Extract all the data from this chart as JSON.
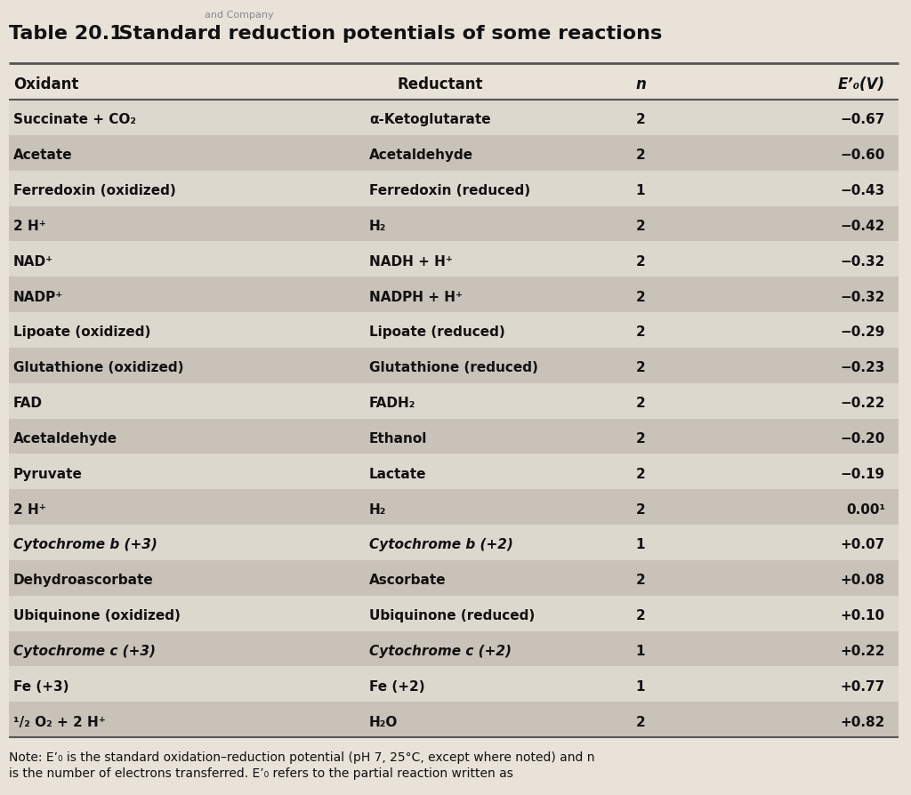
{
  "title_part1": "Table 20.1",
  "title_part2": "  Standard reduction potentials of some reactions",
  "company_text": "and Company",
  "headers": [
    "Oxidant",
    "Reductant",
    "n",
    "E’₀(V)"
  ],
  "rows": [
    [
      "Succinate + CO₂",
      "α-Ketoglutarate",
      "2",
      "−0.67"
    ],
    [
      "Acetate",
      "Acetaldehyde",
      "2",
      "−0.60"
    ],
    [
      "Ferredoxin (oxidized)",
      "Ferredoxin (reduced)",
      "1",
      "−0.43"
    ],
    [
      "2 H⁺",
      "H₂",
      "2",
      "−0.42"
    ],
    [
      "NAD⁺",
      "NADH + H⁺",
      "2",
      "−0.32"
    ],
    [
      "NADP⁺",
      "NADPH + H⁺",
      "2",
      "−0.32"
    ],
    [
      "Lipoate (oxidized)",
      "Lipoate (reduced)",
      "2",
      "−0.29"
    ],
    [
      "Glutathione (oxidized)",
      "Glutathione (reduced)",
      "2",
      "−0.23"
    ],
    [
      "FAD",
      "FADH₂",
      "2",
      "−0.22"
    ],
    [
      "Acetaldehyde",
      "Ethanol",
      "2",
      "−0.20"
    ],
    [
      "Pyruvate",
      "Lactate",
      "2",
      "−0.19"
    ],
    [
      "2 H⁺",
      "H₂",
      "2",
      "0.00¹"
    ],
    [
      "Cytochrome b (+3)",
      "Cytochrome b (+2)",
      "1",
      "+0.07"
    ],
    [
      "Dehydroascorbate",
      "Ascorbate",
      "2",
      "+0.08"
    ],
    [
      "Ubiquinone (oxidized)",
      "Ubiquinone (reduced)",
      "2",
      "+0.10"
    ],
    [
      "Cytochrome c (+3)",
      "Cytochrome c (+2)",
      "1",
      "+0.22"
    ],
    [
      "Fe (+3)",
      "Fe (+2)",
      "1",
      "+0.77"
    ],
    [
      "¹/₂ O₂ + 2 H⁺",
      "H₂O",
      "2",
      "+0.82"
    ]
  ],
  "italic_oxidant": [
    false,
    false,
    false,
    false,
    false,
    false,
    false,
    false,
    false,
    false,
    false,
    false,
    true,
    false,
    false,
    true,
    false,
    false
  ],
  "italic_reductant": [
    false,
    false,
    false,
    false,
    false,
    false,
    false,
    false,
    false,
    false,
    false,
    false,
    true,
    false,
    false,
    true,
    false,
    false
  ],
  "note_line1": "Note: E’₀ is the standard oxidation–reduction potential (pH 7, 25°C, except where noted) and n",
  "note_line2": "is the number of electrons transferred. E’₀ refers to the partial reaction written as",
  "bg_color": "#e8e2d8",
  "row_light": "#ddd8ce",
  "row_dark": "#c8c2b8",
  "text_color": "#111111",
  "line_color": "#555555"
}
